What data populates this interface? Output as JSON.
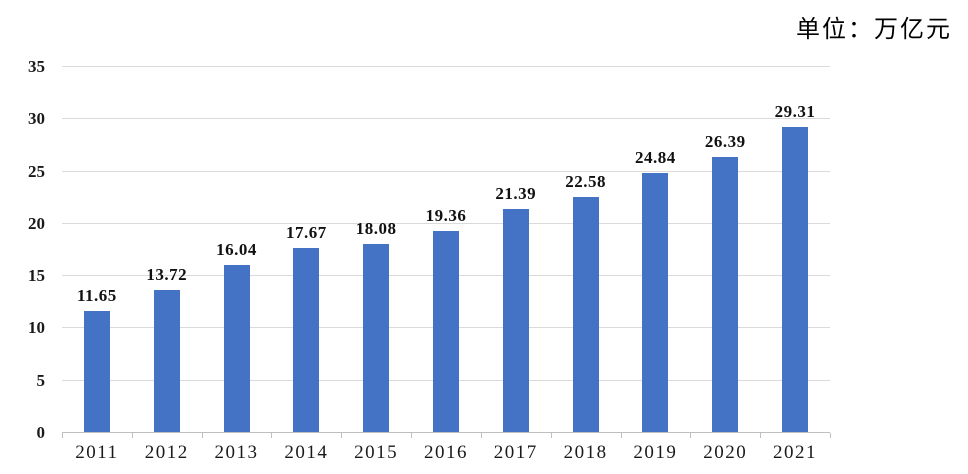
{
  "page": {
    "unit_label": "单位：万亿元"
  },
  "chart_data": {
    "type": "bar",
    "title": "单位：万亿元",
    "xlabel": "",
    "ylabel": "",
    "categories": [
      "2011",
      "2012",
      "2013",
      "2014",
      "2015",
      "2016",
      "2017",
      "2018",
      "2019",
      "2020",
      "2021"
    ],
    "values": [
      11.65,
      13.72,
      16.04,
      17.67,
      18.08,
      19.36,
      21.39,
      22.58,
      24.84,
      26.39,
      29.31
    ],
    "value_labels": [
      "11.65",
      "13.72",
      "16.04",
      "17.67",
      "18.08",
      "19.36",
      "21.39",
      "22.58",
      "24.84",
      "26.39",
      "29.31"
    ],
    "ylim": [
      0,
      35
    ],
    "yticks": [
      0,
      5,
      10,
      15,
      20,
      25,
      30,
      35
    ],
    "grid": true,
    "legend": "none",
    "colors": {
      "bar": "#4473C5",
      "gridline": "#DADADA",
      "axis": "#BFBFBF",
      "text": "#1A1A1A"
    }
  }
}
